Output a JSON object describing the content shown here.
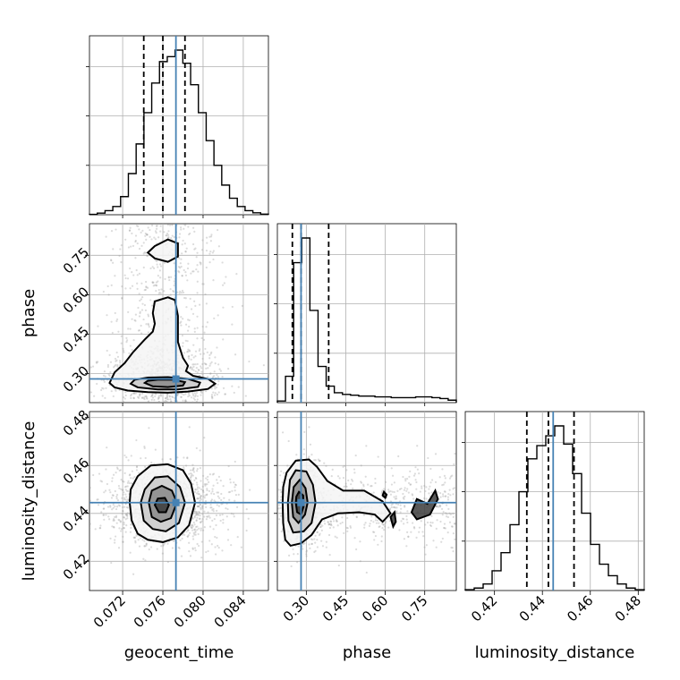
{
  "chart_data": {
    "type": "corner",
    "parameters": [
      {
        "name": "geocent_time",
        "label": "geocent_time",
        "range": [
          0.0687,
          0.0865
        ],
        "ticks": [
          0.072,
          0.076,
          0.08,
          0.084
        ],
        "tick_labels": [
          "0.072",
          "0.076",
          "0.080",
          "0.084"
        ],
        "truth": 0.0773,
        "quantiles": [
          0.0741,
          0.076,
          0.0782
        ]
      },
      {
        "name": "phase",
        "label": "phase",
        "range": [
          0.19,
          0.87
        ],
        "ticks": [
          0.3,
          0.45,
          0.6,
          0.75
        ],
        "tick_labels": [
          "0.30",
          "0.45",
          "0.60",
          "0.75"
        ],
        "truth": 0.28,
        "quantiles": [
          0.247,
          0.28,
          0.385
        ]
      },
      {
        "name": "luminosity_distance",
        "label": "luminosity_distance",
        "range": [
          0.4078,
          0.4825
        ],
        "ticks": [
          0.42,
          0.44,
          0.46,
          0.48
        ],
        "tick_labels": [
          "0.42",
          "0.44",
          "0.46",
          "0.48"
        ],
        "truth": 0.4445,
        "quantiles": [
          0.4335,
          0.4425,
          0.4532
        ]
      }
    ],
    "histograms": {
      "geocent_time": [
        0.2,
        1.0,
        2.5,
        5.0,
        11.0,
        25.0,
        43.0,
        62.0,
        80.0,
        93.0,
        96.0,
        100.0,
        92.0,
        79.0,
        62.0,
        45.0,
        30.0,
        18.0,
        10.0,
        5.0,
        2.5,
        1.2,
        0.4
      ],
      "phase": [
        1.0,
        16.0,
        85.0,
        100.0,
        56.0,
        22.0,
        10.0,
        6.0,
        5.0,
        4.5,
        4.0,
        4.0,
        3.5,
        3.5,
        3.0,
        3.0,
        3.0,
        3.5,
        3.5,
        3.0,
        2.5,
        1.5
      ],
      "luminosity_distance": [
        0.5,
        1.5,
        4.0,
        12.0,
        23.0,
        40.0,
        60.0,
        80.0,
        88.0,
        94.0,
        100.0,
        89.0,
        71.0,
        47.0,
        28.0,
        16.0,
        9.0,
        4.0,
        1.5,
        0.5
      ]
    },
    "contours": {
      "geocent_time-phase": [
        [
          [
            0.0707,
            0.265
          ],
          [
            0.0712,
            0.248
          ],
          [
            0.0725,
            0.236
          ],
          [
            0.0745,
            0.23
          ],
          [
            0.0765,
            0.228
          ],
          [
            0.0785,
            0.232
          ],
          [
            0.0805,
            0.242
          ],
          [
            0.0812,
            0.262
          ],
          [
            0.0805,
            0.28
          ],
          [
            0.079,
            0.292
          ],
          [
            0.0783,
            0.31
          ],
          [
            0.0785,
            0.33
          ],
          [
            0.078,
            0.36
          ],
          [
            0.0775,
            0.42
          ],
          [
            0.0775,
            0.52
          ],
          [
            0.0772,
            0.58
          ],
          [
            0.0765,
            0.59
          ],
          [
            0.0752,
            0.575
          ],
          [
            0.075,
            0.53
          ],
          [
            0.0752,
            0.49
          ],
          [
            0.075,
            0.46
          ],
          [
            0.0742,
            0.43
          ],
          [
            0.073,
            0.38
          ],
          [
            0.0722,
            0.34
          ],
          [
            0.0712,
            0.305
          ],
          [
            0.0707,
            0.265
          ]
        ],
        [
          [
            0.0752,
            0.785
          ],
          [
            0.0765,
            0.81
          ],
          [
            0.0775,
            0.795
          ],
          [
            0.0775,
            0.745
          ],
          [
            0.0765,
            0.725
          ],
          [
            0.0752,
            0.738
          ],
          [
            0.0745,
            0.76
          ],
          [
            0.0752,
            0.785
          ]
        ],
        [
          [
            0.0728,
            0.262
          ],
          [
            0.0735,
            0.248
          ],
          [
            0.0755,
            0.24
          ],
          [
            0.0775,
            0.24
          ],
          [
            0.0795,
            0.25
          ],
          [
            0.0797,
            0.266
          ],
          [
            0.0785,
            0.28
          ],
          [
            0.0765,
            0.287
          ],
          [
            0.0745,
            0.285
          ],
          [
            0.0732,
            0.277
          ],
          [
            0.0728,
            0.262
          ]
        ],
        [
          [
            0.0742,
            0.265
          ],
          [
            0.075,
            0.252
          ],
          [
            0.0765,
            0.249
          ],
          [
            0.078,
            0.255
          ],
          [
            0.0782,
            0.268
          ],
          [
            0.077,
            0.277
          ],
          [
            0.0755,
            0.277
          ],
          [
            0.0745,
            0.273
          ],
          [
            0.0742,
            0.265
          ]
        ]
      ],
      "geocent_time-luminosity_distance": [
        [
          [
            0.0727,
            0.4445
          ],
          [
            0.0729,
            0.437
          ],
          [
            0.0735,
            0.4315
          ],
          [
            0.0745,
            0.429
          ],
          [
            0.076,
            0.428
          ],
          [
            0.0775,
            0.43
          ],
          [
            0.0786,
            0.435
          ],
          [
            0.0792,
            0.4445
          ],
          [
            0.0788,
            0.4525
          ],
          [
            0.078,
            0.458
          ],
          [
            0.0765,
            0.4605
          ],
          [
            0.0748,
            0.46
          ],
          [
            0.0735,
            0.4555
          ],
          [
            0.0728,
            0.45
          ],
          [
            0.0727,
            0.4445
          ]
        ],
        [
          [
            0.0738,
            0.4445
          ],
          [
            0.0741,
            0.437
          ],
          [
            0.075,
            0.4335
          ],
          [
            0.0763,
            0.4325
          ],
          [
            0.0776,
            0.436
          ],
          [
            0.0782,
            0.4445
          ],
          [
            0.0777,
            0.451
          ],
          [
            0.0765,
            0.4555
          ],
          [
            0.0752,
            0.455
          ],
          [
            0.0742,
            0.45
          ],
          [
            0.0738,
            0.4445
          ]
        ],
        [
          [
            0.0746,
            0.4445
          ],
          [
            0.0749,
            0.4385
          ],
          [
            0.0758,
            0.4365
          ],
          [
            0.0768,
            0.438
          ],
          [
            0.0774,
            0.4445
          ],
          [
            0.0769,
            0.4495
          ],
          [
            0.0759,
            0.4515
          ],
          [
            0.0749,
            0.4495
          ],
          [
            0.0746,
            0.4445
          ]
        ],
        [
          [
            0.0752,
            0.4435
          ],
          [
            0.0756,
            0.4405
          ],
          [
            0.0763,
            0.4405
          ],
          [
            0.0766,
            0.4435
          ],
          [
            0.0762,
            0.4465
          ],
          [
            0.0755,
            0.4462
          ],
          [
            0.0752,
            0.4435
          ]
        ]
      ],
      "phase-luminosity_distance": [
        [
          [
            0.21,
            0.4445
          ],
          [
            0.212,
            0.436
          ],
          [
            0.22,
            0.429
          ],
          [
            0.24,
            0.4265
          ],
          [
            0.28,
            0.4275
          ],
          [
            0.32,
            0.431
          ],
          [
            0.36,
            0.4375
          ],
          [
            0.42,
            0.44
          ],
          [
            0.5,
            0.4405
          ],
          [
            0.56,
            0.4395
          ],
          [
            0.59,
            0.4365
          ],
          [
            0.62,
            0.44
          ],
          [
            0.59,
            0.445
          ],
          [
            0.52,
            0.4495
          ],
          [
            0.44,
            0.4495
          ],
          [
            0.38,
            0.4535
          ],
          [
            0.34,
            0.4595
          ],
          [
            0.31,
            0.4625
          ],
          [
            0.26,
            0.462
          ],
          [
            0.225,
            0.457
          ],
          [
            0.212,
            0.451
          ],
          [
            0.21,
            0.4445
          ]
        ],
        [
          [
            0.23,
            0.4445
          ],
          [
            0.232,
            0.437
          ],
          [
            0.25,
            0.432
          ],
          [
            0.29,
            0.4325
          ],
          [
            0.32,
            0.436
          ],
          [
            0.335,
            0.4445
          ],
          [
            0.325,
            0.452
          ],
          [
            0.3,
            0.4575
          ],
          [
            0.26,
            0.458
          ],
          [
            0.238,
            0.454
          ],
          [
            0.23,
            0.4445
          ]
        ],
        [
          [
            0.245,
            0.4445
          ],
          [
            0.25,
            0.4385
          ],
          [
            0.27,
            0.436
          ],
          [
            0.295,
            0.4395
          ],
          [
            0.305,
            0.4445
          ],
          [
            0.297,
            0.4505
          ],
          [
            0.275,
            0.454
          ],
          [
            0.252,
            0.451
          ],
          [
            0.245,
            0.4445
          ]
        ],
        [
          [
            0.26,
            0.4445
          ],
          [
            0.265,
            0.4405
          ],
          [
            0.28,
            0.4395
          ],
          [
            0.29,
            0.443
          ],
          [
            0.288,
            0.4475
          ],
          [
            0.272,
            0.449
          ],
          [
            0.262,
            0.447
          ],
          [
            0.26,
            0.4445
          ]
        ],
        [
          [
            0.59,
            0.4475
          ],
          [
            0.6,
            0.4465
          ],
          [
            0.605,
            0.4478
          ],
          [
            0.595,
            0.449
          ],
          [
            0.59,
            0.4475
          ]
        ],
        [
          [
            0.62,
            0.4385
          ],
          [
            0.63,
            0.4345
          ],
          [
            0.64,
            0.4365
          ],
          [
            0.635,
            0.4405
          ],
          [
            0.62,
            0.4385
          ]
        ],
        [
          [
            0.7,
            0.4405
          ],
          [
            0.72,
            0.4375
          ],
          [
            0.77,
            0.4395
          ],
          [
            0.8,
            0.446
          ],
          [
            0.79,
            0.4495
          ],
          [
            0.76,
            0.444
          ],
          [
            0.72,
            0.446
          ],
          [
            0.7,
            0.4405
          ]
        ]
      ]
    },
    "grid": true
  }
}
